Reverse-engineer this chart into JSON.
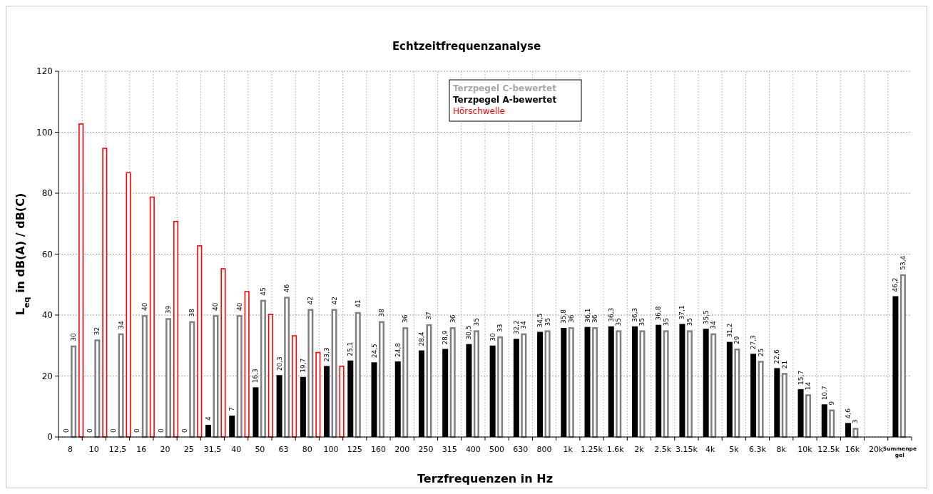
{
  "chart_data": {
    "type": "bar",
    "title": "Echtzeitfrequenzanalyse",
    "xlabel": "Terzfrequenzen in Hz",
    "ylabel": "L$_{eq}$ in dB(A) / dB(C)",
    "categories": [
      "8",
      "10",
      "12,5",
      "16",
      "20",
      "25",
      "31,5",
      "40",
      "50",
      "63",
      "80",
      "100",
      "125",
      "160",
      "200",
      "250",
      "315",
      "400",
      "500",
      "630",
      "800",
      "1k",
      "1.25k",
      "1.6k",
      "2k",
      "2.5k",
      "3.15k",
      "4k",
      "5k",
      "6.3k",
      "8k",
      "10k",
      "12.5k",
      "16k",
      "20k",
      "Summenpegel"
    ],
    "series": [
      {
        "name": "Terzpegel A-bewertet",
        "color": "#000000",
        "values": [
          0,
          0,
          0,
          0,
          0,
          0,
          4,
          7,
          16.3,
          20.3,
          19.7,
          23.3,
          25.1,
          24.5,
          24.8,
          28.4,
          28.9,
          30.5,
          30,
          32.2,
          34.5,
          35.8,
          36.1,
          36.3,
          36.3,
          36.8,
          37.1,
          35.5,
          31.2,
          27.3,
          22.6,
          15.7,
          10.7,
          4.6,
          0,
          46.2
        ],
        "value_labels": [
          "0",
          "0",
          "0",
          "0",
          "0",
          "0",
          "4",
          "7",
          "16,3",
          "20,3",
          "19,7",
          "23,3",
          "25,1",
          "24,5",
          "24,8",
          "28,4",
          "28,9",
          "30,5",
          "30",
          "32,2",
          "34,5",
          "35,8",
          "36,1",
          "36,3",
          "36,3",
          "36,8",
          "37,1",
          "35,5",
          "31,2",
          "27,3",
          "22,6",
          "15,7",
          "10,7",
          "4,6",
          null,
          "46,2"
        ]
      },
      {
        "name": "Terzpegel C-bewertet",
        "color": "#808080",
        "values": [
          30,
          32,
          34,
          40,
          39,
          38,
          40,
          40,
          45,
          46,
          42,
          42,
          41,
          38,
          36,
          37,
          36,
          35,
          33,
          34,
          35,
          36,
          36,
          35,
          35,
          35,
          35,
          34,
          29,
          25,
          21,
          14,
          9,
          3,
          0.2,
          53.4
        ],
        "value_labels": [
          "30",
          "32",
          "34",
          "40",
          "39",
          "38",
          "40",
          "40",
          "45",
          "46",
          "42",
          "42",
          "41",
          "38",
          "36",
          "37",
          "36",
          "35",
          "33",
          "34",
          "35",
          "36",
          "36",
          "35",
          "35",
          "35",
          "35",
          "34",
          "29",
          "25",
          "21",
          "14",
          "9",
          "3",
          null,
          "53,4"
        ]
      },
      {
        "name": "Hörschwelle",
        "color": "#ff0000",
        "values": [
          103,
          95,
          87,
          79,
          71,
          63,
          55.5,
          48,
          40.5,
          33.5,
          28,
          23.5,
          null,
          null,
          null,
          null,
          null,
          null,
          null,
          null,
          null,
          null,
          null,
          null,
          null,
          null,
          null,
          null,
          null,
          null,
          null,
          null,
          null,
          null,
          null,
          null
        ]
      }
    ],
    "ylim": [
      0,
      120
    ],
    "yticks": [
      0,
      20,
      40,
      60,
      80,
      100,
      120
    ],
    "grid": true,
    "legend": "top"
  }
}
